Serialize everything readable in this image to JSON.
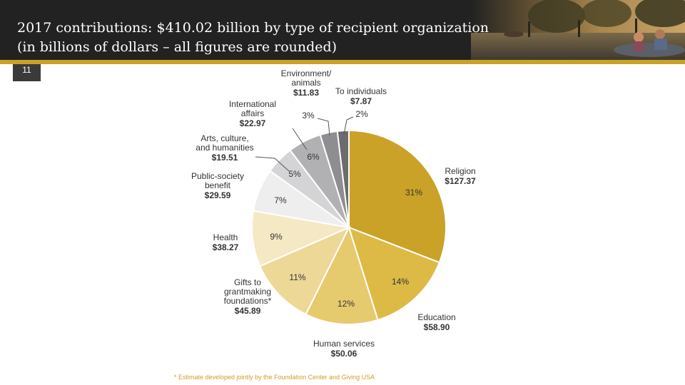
{
  "header": {
    "title_line1": "2017 contributions: $410.02 billion by type of recipient organization",
    "title_line2": "(in billions of dollars – all figures are rounded)",
    "slide_number": "11"
  },
  "footnote": "* Estimate developed jointly by the Foundation Center and Giving USA",
  "colors": {
    "header_bg": "#222222",
    "accent_gold": "#c9a227"
  },
  "chart_data": {
    "type": "pie",
    "title": "2017 contributions: $410.02 billion by type of recipient organization",
    "unit": "billions of dollars",
    "slices": [
      {
        "name": "Religion",
        "label_lines": [
          "Religion"
        ],
        "value_label": "$127.37",
        "value": 127.37,
        "pct_label": "31%",
        "color": "#c9a227"
      },
      {
        "name": "Education",
        "label_lines": [
          "Education"
        ],
        "value_label": "$58.90",
        "value": 58.9,
        "pct_label": "14%",
        "color": "#dcba45"
      },
      {
        "name": "Human services",
        "label_lines": [
          "Human services"
        ],
        "value_label": "$50.06",
        "value": 50.06,
        "pct_label": "12%",
        "color": "#e6ca6e"
      },
      {
        "name": "Gifts to grantmaking foundations*",
        "label_lines": [
          "Gifts to",
          "grantmaking",
          "foundations*"
        ],
        "value_label": "$45.89",
        "value": 45.89,
        "pct_label": "11%",
        "color": "#edd898"
      },
      {
        "name": "Health",
        "label_lines": [
          "Health"
        ],
        "value_label": "$38.27",
        "value": 38.27,
        "pct_label": "9%",
        "color": "#f5e8c4"
      },
      {
        "name": "Public-society benefit",
        "label_lines": [
          "Public-society",
          "benefit"
        ],
        "value_label": "$29.59",
        "value": 29.59,
        "pct_label": "7%",
        "color": "#eeeeee"
      },
      {
        "name": "Arts, culture, and humanities",
        "label_lines": [
          "Arts, culture,",
          "and humanities"
        ],
        "value_label": "$19.51",
        "value": 19.51,
        "pct_label": "5%",
        "color": "#d4d4d6"
      },
      {
        "name": "International affairs",
        "label_lines": [
          "International",
          "affairs"
        ],
        "value_label": "$22.97",
        "value": 22.97,
        "pct_label": "6%",
        "color": "#b1b1b4"
      },
      {
        "name": "Environment/animals",
        "label_lines": [
          "Environment/",
          "animals"
        ],
        "value_label": "$11.83",
        "value": 11.83,
        "pct_label": "3%",
        "color": "#8e8e92"
      },
      {
        "name": "To individuals",
        "label_lines": [
          "To individuals"
        ],
        "value_label": "$7.87",
        "value": 7.87,
        "pct_label": "2%",
        "color": "#6c6c70"
      }
    ]
  }
}
